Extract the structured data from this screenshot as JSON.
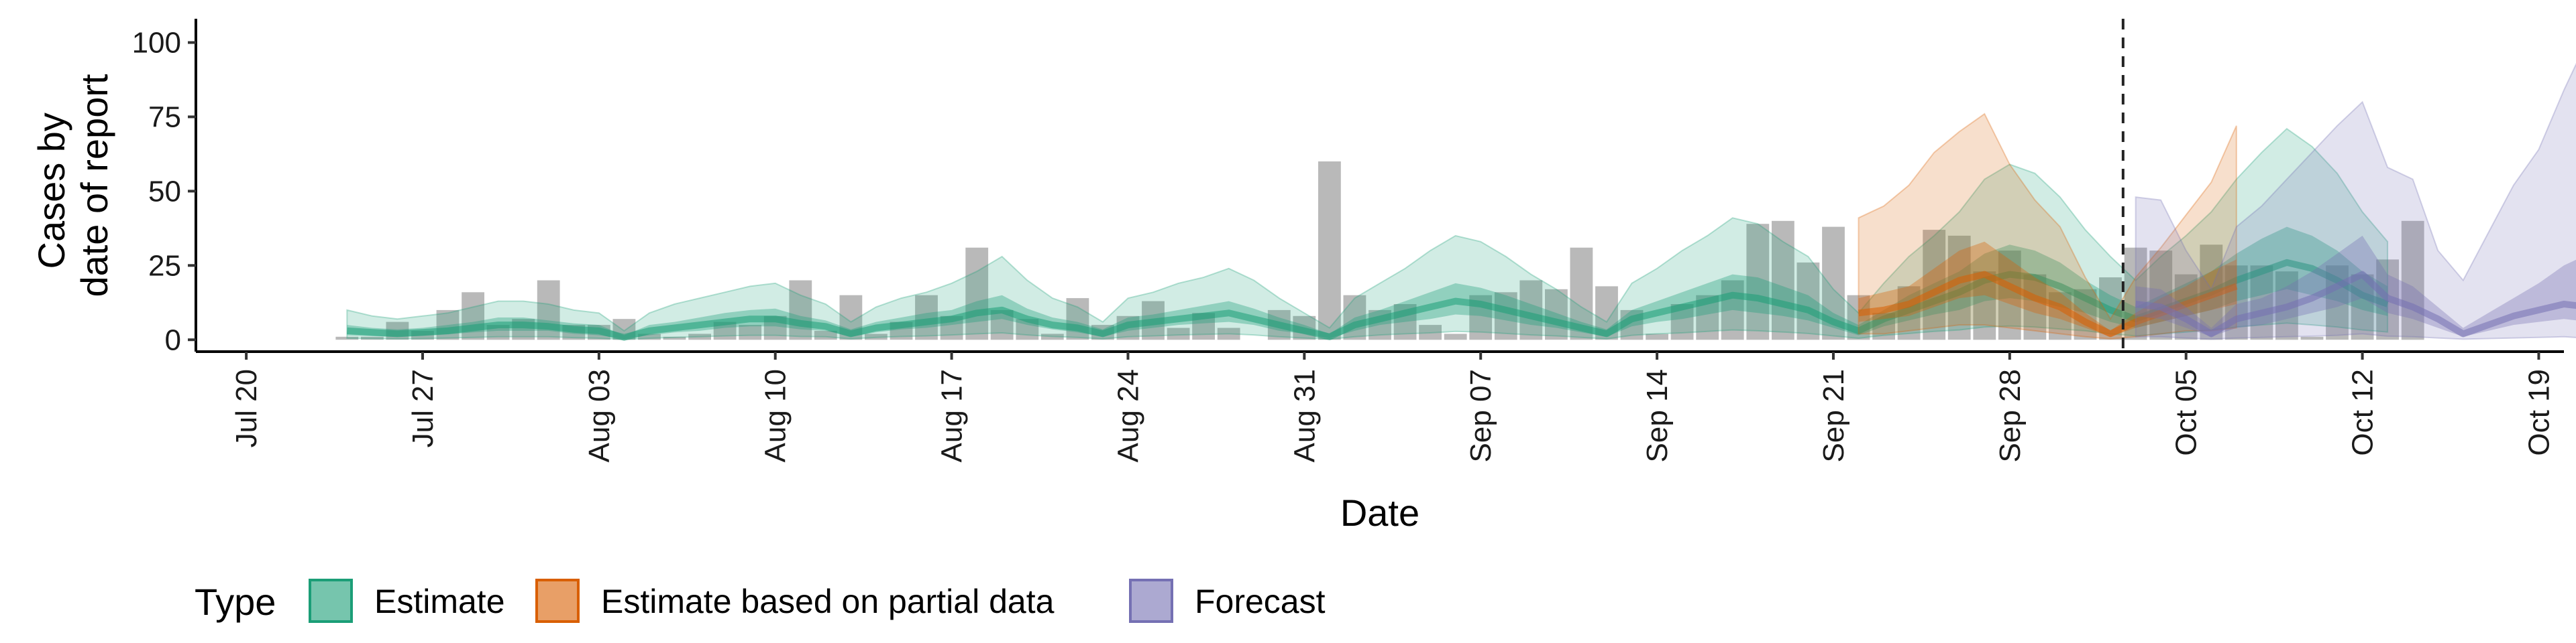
{
  "chart_data": {
    "type": "area",
    "xlabel": "Date",
    "ylabel_lines": [
      "Cases by",
      "date of report"
    ],
    "ylim": [
      -4,
      108
    ],
    "xlim": [
      "2020-07-18",
      "2020-10-20"
    ],
    "yticks": [
      0,
      25,
      50,
      75,
      100
    ],
    "ytick_labels": [
      "0",
      "25",
      "50",
      "75",
      "100"
    ],
    "xticks": [
      "2020-07-20",
      "2020-07-27",
      "2020-08-03",
      "2020-08-10",
      "2020-08-17",
      "2020-08-24",
      "2020-08-31",
      "2020-09-07",
      "2020-09-14",
      "2020-09-21",
      "2020-09-28",
      "2020-10-05",
      "2020-10-12",
      "2020-10-19"
    ],
    "xtick_labels": [
      "Jul 20",
      "Jul 27",
      "Aug 03",
      "Aug 10",
      "Aug 17",
      "Aug 24",
      "Aug 31",
      "Sep 07",
      "Sep 14",
      "Sep 21",
      "Sep 28",
      "Oct 05",
      "Oct 12",
      "Oct 19"
    ],
    "vline_date": "2020-10-02",
    "legend": {
      "title": "Type",
      "placement": "bottom",
      "entries": [
        {
          "label": "Estimate",
          "fill": "#1b9e77",
          "stroke": "#1b9e77"
        },
        {
          "label": "Estimate based on partial data",
          "fill": "#d95f02",
          "stroke": "#d95f02"
        },
        {
          "label": "Forecast",
          "fill": "#7570b3",
          "stroke": "#7570b3"
        }
      ]
    },
    "colors": {
      "Estimate": "#1b9e77",
      "Estimate based on partial data": "#d95f02",
      "Forecast": "#7570b3",
      "bars": "#9e9e9e",
      "vline": "#222222"
    },
    "reported_cases": {
      "start": "2020-07-24",
      "values": [
        1,
        1,
        6,
        3,
        10,
        16,
        5,
        7,
        20,
        5,
        5,
        7,
        2,
        1,
        2,
        6,
        5,
        8,
        20,
        3,
        15,
        2,
        6,
        15,
        8,
        31,
        10,
        7,
        2,
        14,
        5,
        8,
        13,
        4,
        9,
        4,
        0,
        10,
        8,
        60,
        15,
        10,
        12,
        5,
        2,
        15,
        16,
        20,
        17,
        31,
        18,
        10,
        2,
        12,
        15,
        20,
        39,
        40,
        26,
        38,
        15,
        9,
        18,
        37,
        35,
        23,
        30,
        22,
        16,
        17,
        21,
        31,
        30,
        22,
        32,
        25,
        25,
        23,
        1,
        25,
        22,
        27,
        40
      ]
    },
    "series": [
      {
        "name": "Estimate",
        "start": "2020-07-24",
        "median": [
          3,
          2.5,
          2,
          2.5,
          3,
          4,
          5,
          5,
          4.5,
          3.5,
          3,
          0.8,
          3,
          4,
          5,
          6,
          7,
          7,
          5.5,
          4.5,
          2,
          4,
          5,
          6,
          7,
          9,
          10,
          7,
          5,
          4,
          2,
          5,
          6,
          7,
          8,
          9,
          7,
          5,
          3,
          1,
          5,
          7,
          9,
          11,
          13,
          12,
          10,
          8,
          6,
          4,
          2,
          7,
          9,
          11,
          13,
          15,
          14,
          12,
          10,
          6,
          3,
          7,
          10,
          13,
          16,
          20,
          22,
          21,
          18,
          14,
          10,
          7,
          10,
          13,
          16,
          20,
          23,
          26,
          24,
          20,
          15,
          12
        ],
        "lower50": [
          1.5,
          1.2,
          1,
          1.3,
          1.8,
          2.5,
          3,
          3,
          3,
          2,
          1.5,
          0.3,
          1.5,
          2.5,
          3,
          4,
          4.5,
          4.5,
          3.5,
          3,
          1,
          2.5,
          3.5,
          4,
          5,
          6,
          7,
          5,
          3.5,
          2.5,
          1,
          3,
          4,
          5,
          5.5,
          6,
          5,
          3,
          2,
          0.5,
          3,
          5,
          6,
          7,
          8.5,
          8,
          6.5,
          5,
          4,
          2.5,
          1,
          4.5,
          6,
          7,
          8.5,
          10,
          9,
          8,
          6.5,
          4,
          1.5,
          4.5,
          6.5,
          8.5,
          10,
          13,
          14,
          13,
          11,
          9,
          6,
          4,
          6,
          8,
          10,
          13,
          15,
          17,
          15,
          13,
          10,
          8
        ],
        "upper50": [
          5,
          4,
          3.5,
          4,
          5,
          6,
          7.5,
          7.5,
          6.5,
          5.5,
          5,
          1.5,
          5,
          6,
          7.5,
          9,
          10,
          10.5,
          8,
          6.5,
          3.5,
          6,
          7.5,
          9,
          10,
          13,
          15,
          10.5,
          7.5,
          6,
          3.5,
          7.5,
          8.5,
          10,
          11.5,
          13,
          10.5,
          7.5,
          5,
          2,
          7.5,
          10,
          13,
          16,
          19,
          17.5,
          15,
          12,
          9,
          6,
          3.5,
          10,
          13,
          16,
          19,
          22,
          21,
          18,
          15,
          9,
          5,
          10,
          15,
          19,
          23,
          29,
          32,
          30,
          26,
          20,
          15,
          11,
          15,
          19,
          23,
          29,
          34,
          38,
          35,
          30,
          23,
          18
        ],
        "lower90": [
          0.5,
          0.4,
          0.3,
          0.4,
          0.6,
          0.8,
          1,
          1,
          1,
          0.7,
          0.5,
          0.1,
          0.5,
          0.8,
          1,
          1.3,
          1.5,
          1.5,
          1.1,
          1,
          0.3,
          0.8,
          1.1,
          1.3,
          1.6,
          2,
          2.3,
          1.6,
          1.1,
          0.8,
          0.3,
          1,
          1.3,
          1.6,
          1.8,
          2,
          1.6,
          1,
          0.6,
          0.2,
          1,
          1.6,
          2,
          2.3,
          2.8,
          2.6,
          2.1,
          1.6,
          1.3,
          0.8,
          0.3,
          1.5,
          2,
          2.3,
          2.8,
          3.3,
          3,
          2.6,
          2.1,
          1.3,
          0.5,
          1.5,
          2.1,
          2.8,
          3.3,
          4.3,
          4.6,
          4.3,
          3.6,
          3,
          2,
          1.3,
          2,
          2.6,
          3.3,
          4.3,
          5,
          5.6,
          5,
          4.3,
          3.3,
          2.6
        ],
        "upper90": [
          10,
          8,
          7,
          8,
          9,
          11,
          13,
          13,
          12,
          10,
          9,
          3,
          9,
          12,
          14,
          16,
          18,
          19,
          15,
          12,
          6,
          11,
          14,
          16,
          19,
          23,
          28,
          20,
          14,
          11,
          6,
          14,
          16,
          19,
          21,
          24,
          20,
          14,
          9,
          4,
          14,
          19,
          24,
          30,
          35,
          33,
          28,
          22,
          17,
          11,
          6,
          19,
          24,
          30,
          35,
          41,
          39,
          33,
          28,
          17,
          9,
          19,
          28,
          35,
          43,
          54,
          59,
          56,
          48,
          37,
          28,
          20,
          28,
          35,
          43,
          54,
          63,
          71,
          65,
          56,
          43,
          33
        ]
      },
      {
        "name": "Estimate based on partial data",
        "start": "2020-09-22",
        "median": [
          9,
          10,
          12,
          16,
          20,
          22,
          18,
          14,
          11,
          6,
          2,
          6,
          9,
          12,
          15,
          18
        ],
        "lower50": [
          6,
          7,
          8,
          11,
          14,
          15,
          12,
          9,
          7,
          4,
          1,
          4,
          6,
          8,
          10,
          12
        ],
        "upper50": [
          14,
          16,
          18,
          24,
          30,
          33,
          27,
          21,
          16,
          9,
          3,
          9,
          14,
          18,
          23,
          27
        ],
        "lower90": [
          2,
          2,
          3,
          4,
          5,
          5,
          4,
          3,
          2,
          1,
          0.3,
          1,
          2,
          3,
          3,
          4
        ],
        "upper90": [
          41,
          45,
          52,
          63,
          70,
          76,
          59,
          47,
          38,
          21,
          7,
          21,
          31,
          42,
          53,
          72
        ]
      },
      {
        "name": "Forecast",
        "start": "2020-10-03",
        "median": [
          12,
          11,
          7,
          2,
          7,
          9,
          11,
          14,
          18,
          22,
          14,
          11,
          7,
          2,
          5,
          8,
          10,
          12,
          11
        ],
        "lower50": [
          8,
          7,
          4,
          1,
          4,
          5,
          7,
          9,
          11,
          14,
          9,
          7,
          4,
          1,
          3,
          5,
          6,
          7,
          6
        ],
        "upper50": [
          18,
          17,
          11,
          4,
          12,
          14,
          18,
          23,
          29,
          35,
          22,
          18,
          11,
          4,
          9,
          14,
          19,
          25,
          29
        ],
        "lower90": [
          1,
          1,
          0.6,
          0.2,
          0.6,
          0.8,
          1,
          1.2,
          1.5,
          2,
          1.2,
          1,
          0.6,
          0.2,
          0.4,
          0.6,
          0.8,
          1,
          0.5
        ],
        "upper90": [
          48,
          47,
          30,
          17,
          38,
          45,
          54,
          63,
          72,
          80,
          58,
          54,
          30,
          20,
          36,
          52,
          64,
          84,
          102
        ]
      }
    ]
  }
}
